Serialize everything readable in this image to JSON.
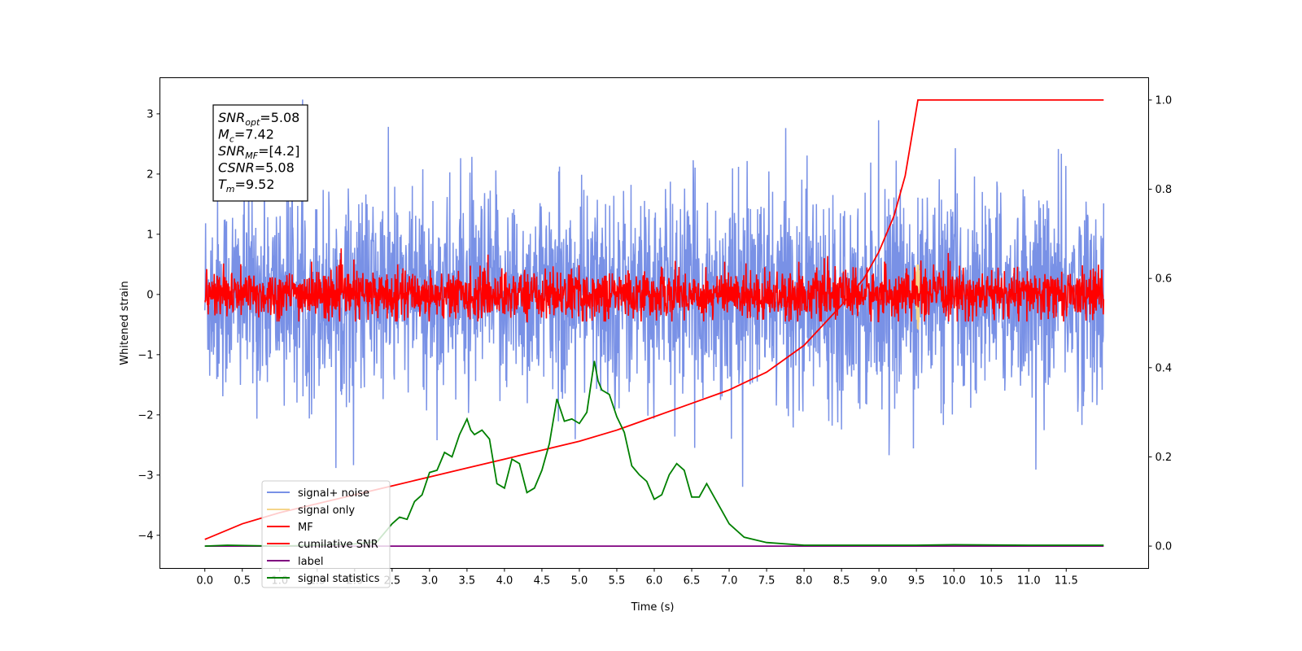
{
  "chart_data": {
    "type": "line",
    "xlabel": "Time (s)",
    "ylabel": "Whitened strain",
    "xlim": [
      -0.6,
      12.6
    ],
    "ylim": [
      -4.55,
      3.6
    ],
    "y2lim": [
      -0.05,
      1.05
    ],
    "x_ticks": [
      "0.0",
      "0.5",
      "1.0",
      "1.5",
      "2.0",
      "2.5",
      "3.0",
      "3.5",
      "4.0",
      "4.5",
      "5.0",
      "5.5",
      "6.0",
      "6.5",
      "7.0",
      "7.5",
      "8.0",
      "8.5",
      "9.0",
      "9.5",
      "10.0",
      "10.5",
      "11.0",
      "11.5"
    ],
    "y_ticks": [
      "3",
      "2",
      "1",
      "0",
      "−1",
      "−2",
      "−3",
      "−4"
    ],
    "y2_ticks": [
      "1.0",
      "0.8",
      "0.6",
      "0.4",
      "0.2",
      "0.0"
    ],
    "grid": false,
    "legend_position": "lower-left",
    "annotation": {
      "lines": [
        {
          "name": "SNR",
          "sub": "opt",
          "value": "=5.08"
        },
        {
          "name": "M",
          "sub": "c",
          "value": "=7.42"
        },
        {
          "name": "SNR",
          "sub": "MF",
          "value": "=[4.2]"
        },
        {
          "name": "CSNR",
          "sub": "",
          "value": "=5.08"
        },
        {
          "name": "T",
          "sub": "m",
          "value": "=9.52"
        }
      ]
    },
    "series": [
      {
        "name": "signal+ noise",
        "color": "#7991e6",
        "axis": "left",
        "kind": "noise",
        "std": 0.85,
        "range": [
          -4.2,
          3.25
        ],
        "x_range": [
          0.0,
          12.0
        ]
      },
      {
        "name": "signal only",
        "color": "#f5d58a",
        "axis": "left",
        "kind": "chirp",
        "peak_time": 9.52,
        "amplitude": 0.6
      },
      {
        "name": "MF",
        "color": "#ff0000",
        "axis": "left",
        "kind": "noise",
        "std": 0.2,
        "range": [
          -0.45,
          0.8
        ],
        "x_range": [
          0.0,
          12.0
        ]
      },
      {
        "name": "cumilative SNR",
        "color": "#ff0000",
        "axis": "right",
        "x": [
          0.0,
          0.5,
          1.0,
          1.5,
          2.0,
          2.5,
          3.0,
          3.5,
          4.0,
          4.5,
          5.0,
          5.5,
          6.0,
          6.5,
          7.0,
          7.5,
          8.0,
          8.5,
          8.8,
          9.0,
          9.2,
          9.35,
          9.45,
          9.52,
          10.0,
          11.0,
          12.0
        ],
        "values": [
          0.015,
          0.05,
          0.075,
          0.095,
          0.115,
          0.135,
          0.155,
          0.175,
          0.195,
          0.215,
          0.235,
          0.26,
          0.29,
          0.32,
          0.35,
          0.39,
          0.45,
          0.54,
          0.6,
          0.66,
          0.74,
          0.83,
          0.93,
          1.0,
          1.0,
          1.0,
          1.0
        ]
      },
      {
        "name": "label",
        "color": "#800080",
        "axis": "right",
        "x": [
          0.0,
          12.0
        ],
        "values": [
          0.0,
          0.0
        ]
      },
      {
        "name": "signal statistics",
        "color": "#008000",
        "axis": "right",
        "x": [
          0.0,
          0.3,
          1.0,
          1.5,
          2.0,
          2.3,
          2.4,
          2.5,
          2.6,
          2.7,
          2.8,
          2.9,
          3.0,
          3.1,
          3.2,
          3.3,
          3.4,
          3.5,
          3.55,
          3.6,
          3.7,
          3.8,
          3.9,
          4.0,
          4.1,
          4.2,
          4.3,
          4.4,
          4.5,
          4.6,
          4.7,
          4.8,
          4.9,
          5.0,
          5.1,
          5.2,
          5.25,
          5.3,
          5.4,
          5.5,
          5.6,
          5.7,
          5.8,
          5.9,
          6.0,
          6.1,
          6.2,
          6.3,
          6.4,
          6.5,
          6.6,
          6.7,
          6.8,
          6.9,
          7.0,
          7.2,
          7.5,
          8.0,
          8.5,
          9.0,
          9.5,
          10.0,
          11.0,
          11.5,
          12.0
        ],
        "values": [
          0.0,
          0.002,
          0.0,
          0.002,
          0.005,
          0.01,
          0.03,
          0.05,
          0.065,
          0.06,
          0.1,
          0.115,
          0.165,
          0.17,
          0.21,
          0.2,
          0.25,
          0.285,
          0.26,
          0.25,
          0.26,
          0.24,
          0.14,
          0.13,
          0.195,
          0.185,
          0.12,
          0.13,
          0.17,
          0.23,
          0.33,
          0.28,
          0.285,
          0.275,
          0.3,
          0.415,
          0.37,
          0.35,
          0.34,
          0.29,
          0.255,
          0.18,
          0.16,
          0.145,
          0.105,
          0.115,
          0.16,
          0.185,
          0.17,
          0.11,
          0.11,
          0.14,
          0.11,
          0.08,
          0.05,
          0.02,
          0.008,
          0.002,
          0.002,
          0.002,
          0.002,
          0.003,
          0.002,
          0.002,
          0.002
        ]
      }
    ]
  }
}
